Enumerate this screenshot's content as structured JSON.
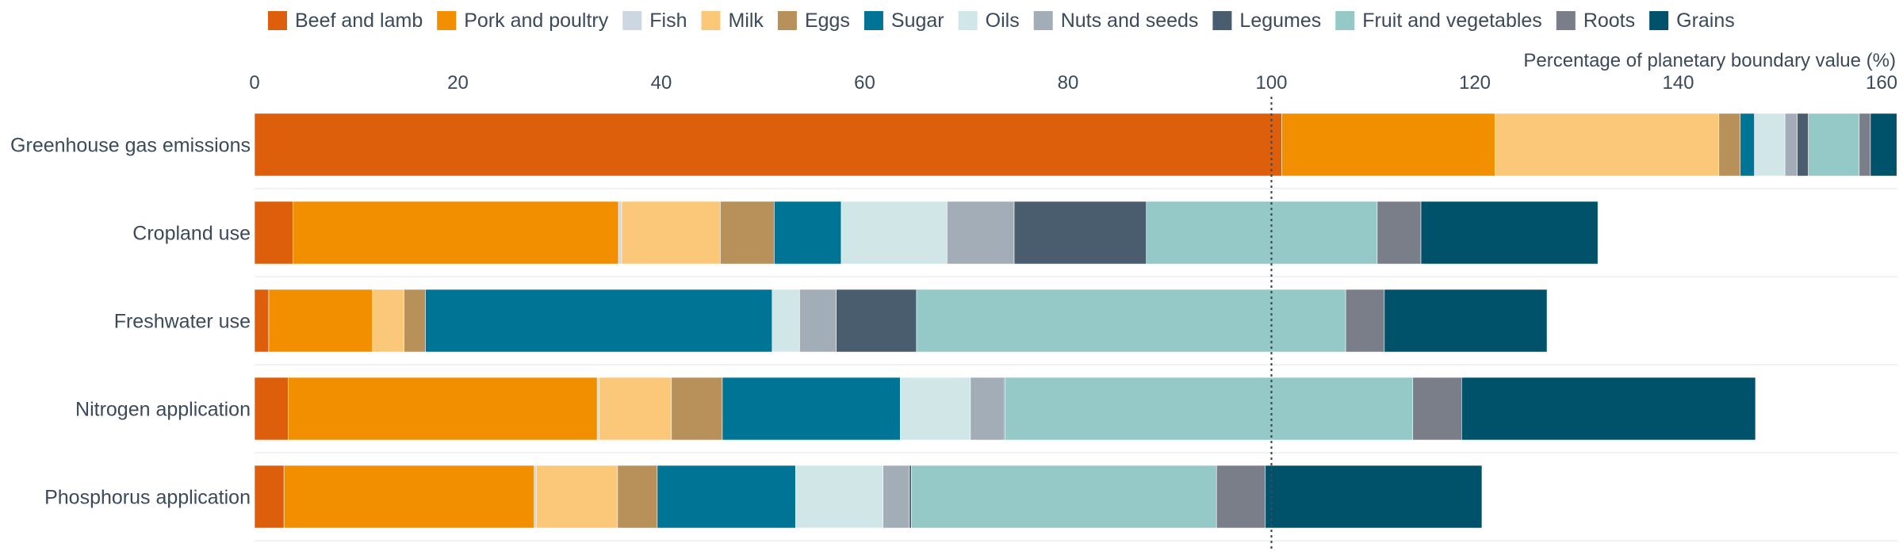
{
  "chart_data": {
    "type": "bar",
    "orientation": "horizontal",
    "stacked": true,
    "xlabel": "Percentage of planetary boundary value (%)",
    "xlim": [
      0,
      160
    ],
    "xticks": [
      "0",
      "20",
      "40",
      "60",
      "80",
      "100",
      "120",
      "140",
      "160"
    ],
    "reference_line": 100,
    "legend_position": "top",
    "grid": "horizontal light lines between rows",
    "categories": [
      "Greenhouse gas emissions",
      "Cropland use",
      "Freshwater use",
      "Nitrogen application",
      "Phosphorus application"
    ],
    "series": [
      {
        "name": "Beef and lamb",
        "color": "#dd5e0b",
        "values": [
          101.0,
          3.8,
          1.4,
          3.3,
          2.9
        ]
      },
      {
        "name": "Pork and poultry",
        "color": "#f28f00",
        "values": [
          21.0,
          32.0,
          10.2,
          30.4,
          24.6
        ]
      },
      {
        "name": "Fish",
        "color": "#ccd7e1",
        "values": [
          0.0,
          0.3,
          0.0,
          0.2,
          0.2
        ]
      },
      {
        "name": "Milk",
        "color": "#fbc87a",
        "values": [
          22.0,
          9.7,
          3.1,
          7.1,
          8.0
        ]
      },
      {
        "name": "Eggs",
        "color": "#b8905a",
        "values": [
          2.1,
          5.3,
          2.1,
          5.0,
          3.9
        ]
      },
      {
        "name": "Sugar",
        "color": "#007495",
        "values": [
          1.4,
          6.6,
          34.1,
          17.5,
          13.6
        ]
      },
      {
        "name": "Oils",
        "color": "#d1e6e6",
        "values": [
          3.0,
          10.4,
          2.7,
          6.9,
          8.6
        ]
      },
      {
        "name": "Nuts and seeds",
        "color": "#a2adb8",
        "values": [
          1.2,
          6.6,
          3.6,
          3.3,
          2.6
        ]
      },
      {
        "name": "Legumes",
        "color": "#495d6e",
        "values": [
          1.1,
          13.0,
          7.9,
          0.1,
          0.2
        ]
      },
      {
        "name": "Fruit and vegetables",
        "color": "#94c9c8",
        "values": [
          5.0,
          22.7,
          42.2,
          40.1,
          30.0
        ]
      },
      {
        "name": "Roots",
        "color": "#797e89",
        "values": [
          1.1,
          4.3,
          3.8,
          4.8,
          4.8
        ]
      },
      {
        "name": "Grains",
        "color": "#00526b",
        "values": [
          2.6,
          17.4,
          16.0,
          28.9,
          21.3
        ]
      }
    ]
  }
}
